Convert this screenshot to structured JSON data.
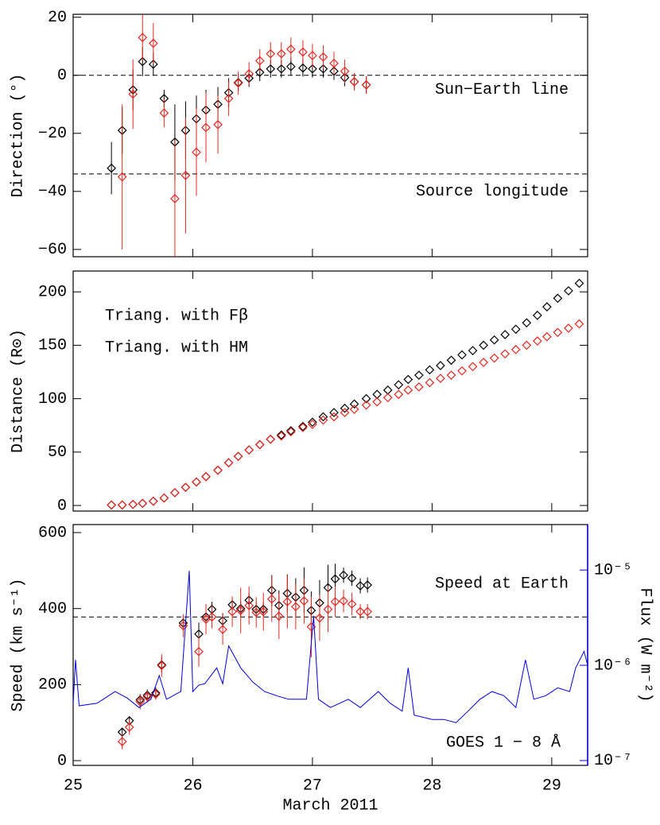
{
  "chart_data": [
    {
      "type": "scatter",
      "ylabel": "Direction (°)",
      "x": [
        25.32,
        25.41,
        25.5,
        25.58,
        25.67,
        25.76,
        25.85,
        25.94,
        26.03,
        26.11,
        26.21,
        26.3,
        26.38,
        26.47,
        26.56,
        26.65,
        26.74,
        26.82,
        26.92,
        27.0,
        27.09,
        27.18,
        27.27,
        27.35,
        27.45
      ],
      "xlim": [
        25,
        29.3
      ],
      "xticks": [
        25,
        26,
        27,
        28,
        29
      ],
      "ylim": [
        -62.5,
        21
      ],
      "yticks": [
        {
          "value": -60,
          "label": "−60"
        },
        {
          "value": -40,
          "label": "−40"
        },
        {
          "value": -20,
          "label": "−20"
        },
        0,
        20
      ],
      "reference_lines": [
        {
          "value": 0,
          "label": "Sun−Earth line"
        },
        {
          "value": -34,
          "label": "Source longitude"
        }
      ],
      "series": [
        {
          "color": "#000000",
          "values": [
            -32,
            -19,
            -5,
            4.7,
            3.8,
            -8,
            -23,
            -19,
            -15,
            -12,
            -10,
            -6,
            -2.5,
            -1,
            1,
            2.2,
            2.2,
            3,
            2.5,
            2.2,
            2.2,
            1.4,
            -0.8,
            -2.2,
            -3.3
          ],
          "errors": [
            9,
            8,
            7,
            5,
            4,
            3,
            13,
            10,
            8,
            7,
            6,
            5,
            3,
            3,
            3,
            3,
            3,
            3,
            3,
            3,
            3,
            3,
            3,
            3,
            3
          ]
        },
        {
          "color": "#e8261f",
          "values": [
            null,
            -35,
            -6.5,
            13,
            11,
            -13,
            -42.5,
            -34.5,
            -26.5,
            -18,
            -17,
            -8,
            -2.7,
            0.5,
            5,
            7.4,
            7.4,
            9,
            8,
            6.8,
            6.3,
            4.1,
            1.4,
            -2.2,
            -3.3
          ],
          "errors": [
            null,
            25,
            12,
            8,
            7,
            5,
            20,
            20,
            15,
            12,
            10,
            6,
            4,
            4,
            4,
            4,
            4,
            4,
            4,
            4,
            4,
            4,
            4,
            3,
            3
          ]
        }
      ]
    },
    {
      "type": "scatter",
      "ylabel": "Distance (R⊙)",
      "x": [
        25.32,
        25.41,
        25.5,
        25.58,
        25.67,
        25.76,
        25.85,
        25.94,
        26.03,
        26.11,
        26.21,
        26.3,
        26.38,
        26.47,
        26.56,
        26.65,
        26.74,
        26.82,
        26.92,
        27.0,
        27.09,
        27.18,
        27.27,
        27.35,
        27.45,
        27.54,
        27.63,
        27.72,
        27.8,
        27.89,
        27.98,
        28.07,
        28.16,
        28.25,
        28.34,
        28.43,
        28.52,
        28.61,
        28.7,
        28.79,
        28.88,
        28.96,
        29.05,
        29.14,
        29.23
      ],
      "xlim": [
        25,
        29.3
      ],
      "xticks": [
        25,
        26,
        27,
        28,
        29
      ],
      "ylim": [
        -5.2,
        219.5
      ],
      "yticks": [
        0,
        50,
        100,
        150,
        200
      ],
      "legend": "upper left",
      "series": [
        {
          "name": "Triang. with Fβ",
          "color": "#000000",
          "values": [
            0.5,
            0.5,
            1,
            2,
            4,
            7,
            12,
            17,
            22,
            27,
            33,
            40,
            46,
            52,
            57,
            62,
            66,
            70,
            74,
            78,
            83,
            87,
            91,
            95,
            100,
            104,
            108,
            113,
            118,
            122,
            127,
            131,
            136,
            141,
            145,
            150,
            155,
            160,
            165,
            171,
            178,
            186,
            194,
            201,
            208
          ]
        },
        {
          "name": "Triang. with HM",
          "color": "#e8261f",
          "values": [
            0.5,
            0.5,
            1,
            2,
            4,
            7,
            12,
            17,
            22,
            27,
            33,
            40,
            46,
            52,
            57,
            62,
            65,
            69,
            73,
            76,
            80,
            83,
            87,
            90,
            94,
            97,
            101,
            104,
            108,
            111,
            115,
            119,
            122,
            126,
            130,
            134,
            138,
            142,
            146,
            150,
            154,
            158,
            162,
            166,
            170
          ]
        }
      ]
    },
    {
      "type": "scatter",
      "xlabel": "March 2011",
      "ylabel": "Speed (km s⁻¹)",
      "y2label": "Flux (W m⁻²)",
      "x": [
        25.41,
        25.47,
        25.56,
        25.62,
        25.69,
        25.74,
        25.92,
        26.05,
        26.11,
        26.16,
        26.25,
        26.33,
        26.4,
        26.47,
        26.53,
        26.59,
        26.66,
        26.72,
        26.79,
        26.86,
        26.93,
        26.99,
        27.06,
        27.13,
        27.19,
        27.26,
        27.33,
        27.4,
        27.46
      ],
      "xlim": [
        25,
        29.3
      ],
      "xticks": [
        25,
        26,
        27,
        28,
        29
      ],
      "ylim": [
        -12.5,
        621
      ],
      "yticks": [
        0,
        200,
        400,
        600
      ],
      "y2lim": [
        8.9e-08,
        3e-05
      ],
      "y2log": true,
      "y2color": "#0000dd",
      "y2ticks": [
        {
          "value": 1e-07,
          "label": "10⁻⁷"
        },
        {
          "value": 1e-06,
          "label": "10⁻⁶"
        },
        {
          "value": 1e-05,
          "label": "10⁻⁵"
        }
      ],
      "reference_lines": [
        {
          "value": 378,
          "label": "Speed at Earth"
        }
      ],
      "series": [
        {
          "color": "#000000",
          "values": [
            75,
            105,
            160,
            172,
            178,
            252,
            362,
            333,
            378,
            398,
            368,
            410,
            400,
            422,
            398,
            398,
            448,
            408,
            440,
            430,
            448,
            395,
            415,
            455,
            478,
            488,
            480,
            460,
            462
          ],
          "errors": [
            10,
            10,
            15,
            15,
            15,
            20,
            20,
            30,
            20,
            20,
            20,
            15,
            20,
            20,
            20,
            20,
            40,
            40,
            50,
            50,
            60,
            50,
            60,
            60,
            40,
            20,
            20,
            20,
            20
          ]
        },
        {
          "color": "#e8261f",
          "values": [
            50,
            88,
            155,
            168,
            175,
            250,
            355,
            287,
            372,
            378,
            345,
            392,
            395,
            408,
            390,
            392,
            425,
            380,
            418,
            405,
            420,
            352,
            375,
            398,
            418,
            420,
            412,
            392,
            392
          ],
          "errors": [
            20,
            20,
            20,
            15,
            15,
            30,
            30,
            40,
            40,
            30,
            40,
            40,
            60,
            50,
            40,
            50,
            60,
            60,
            70,
            60,
            60,
            80,
            60,
            60,
            40,
            30,
            30,
            20,
            20
          ]
        },
        {
          "type": "line",
          "name": "GOES 1 − 8 Å",
          "color": "#0000dd",
          "axis": "y2",
          "x": [
            25.0,
            25.02,
            25.05,
            25.2,
            25.35,
            25.45,
            25.55,
            25.65,
            25.72,
            25.78,
            25.9,
            25.97,
            26.0,
            26.05,
            26.1,
            26.2,
            26.25,
            26.3,
            26.4,
            26.5,
            26.6,
            26.7,
            26.8,
            26.95,
            27.01,
            27.05,
            27.15,
            27.3,
            27.4,
            27.55,
            27.65,
            27.75,
            27.8,
            27.85,
            28.0,
            28.1,
            28.2,
            28.3,
            28.4,
            28.5,
            28.6,
            28.7,
            28.78,
            28.85,
            28.95,
            29.05,
            29.15,
            29.2,
            29.27,
            29.3
          ],
          "values": [
            4e-07,
            1.14e-06,
            3.76e-07,
            4e-07,
            5.3e-07,
            4.55e-07,
            3.6e-07,
            4.4e-07,
            7.8e-07,
            4.4e-07,
            5.3e-07,
            9.8e-06,
            5.3e-07,
            6.2e-07,
            6.4e-07,
            9.4e-07,
            6.4e-07,
            1.6e-06,
            9.4e-07,
            6.7e-07,
            5.3e-07,
            4.8e-07,
            4.4e-07,
            4.4e-07,
            3.3e-06,
            4.4e-07,
            3.6e-07,
            4.4e-07,
            3.6e-07,
            5.3e-07,
            4e-07,
            3.3e-07,
            9.4e-07,
            3e-07,
            2.7e-07,
            2.7e-07,
            2.5e-07,
            3.3e-07,
            4.4e-07,
            5.3e-07,
            4.8e-07,
            3.6e-07,
            1.14e-06,
            4.4e-07,
            4.8e-07,
            5.8e-07,
            5.3e-07,
            9.4e-07,
            1.4e-06,
            1e-06
          ]
        }
      ]
    }
  ]
}
